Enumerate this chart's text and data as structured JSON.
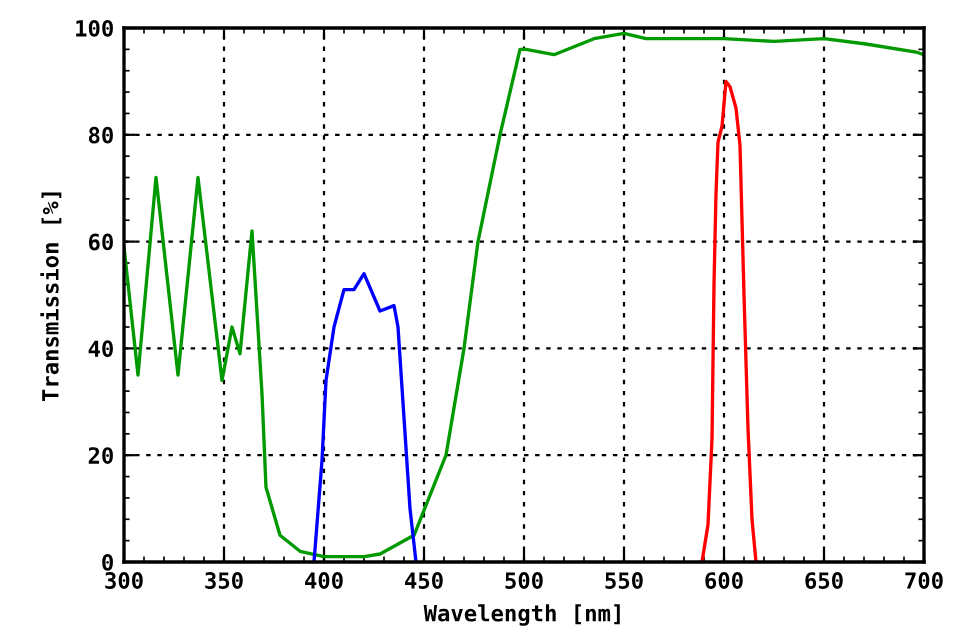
{
  "chart_data": {
    "type": "line",
    "xlabel": "Wavelength [nm]",
    "ylabel": "Transmission [%]",
    "xlim": [
      300,
      700
    ],
    "ylim": [
      0,
      100
    ],
    "xticks": [
      300,
      350,
      400,
      450,
      500,
      550,
      600,
      650,
      700
    ],
    "yticks": [
      0,
      20,
      40,
      60,
      80,
      100
    ],
    "grid": true,
    "line_style": "solid",
    "marker": "none",
    "series": [
      {
        "color": "#009900",
        "x": [
          300,
          307,
          316,
          327,
          337,
          349,
          354,
          358,
          364,
          369,
          371,
          378,
          388,
          400,
          420,
          428,
          445,
          461,
          470,
          477,
          488,
          498,
          501,
          515,
          535,
          550,
          561,
          600,
          625,
          650,
          671,
          696,
          700
        ],
        "values": [
          59,
          35,
          72,
          35,
          72,
          34,
          44,
          39,
          62,
          31.5,
          14,
          5,
          2,
          1,
          1,
          1.5,
          5,
          20,
          40,
          60,
          80,
          96,
          96,
          95,
          98,
          99,
          98,
          98,
          97.5,
          98,
          97,
          95.5,
          95
        ]
      },
      {
        "color": "#0000ff",
        "x": [
          395,
          399,
          401,
          405,
          410,
          415,
          420,
          428,
          435,
          437,
          440,
          443,
          446
        ],
        "values": [
          0,
          19,
          34,
          44,
          51,
          51,
          54,
          47,
          48,
          44,
          27,
          10,
          0
        ]
      },
      {
        "color": "#ff0000",
        "x": [
          589,
          592,
          594,
          595,
          596,
          597,
          599,
          601,
          603,
          606,
          608,
          610,
          612,
          614,
          616
        ],
        "values": [
          0,
          7,
          23,
          52,
          69,
          78.6,
          81.6,
          90,
          89,
          85,
          78,
          50,
          25,
          8,
          0
        ]
      }
    ]
  }
}
